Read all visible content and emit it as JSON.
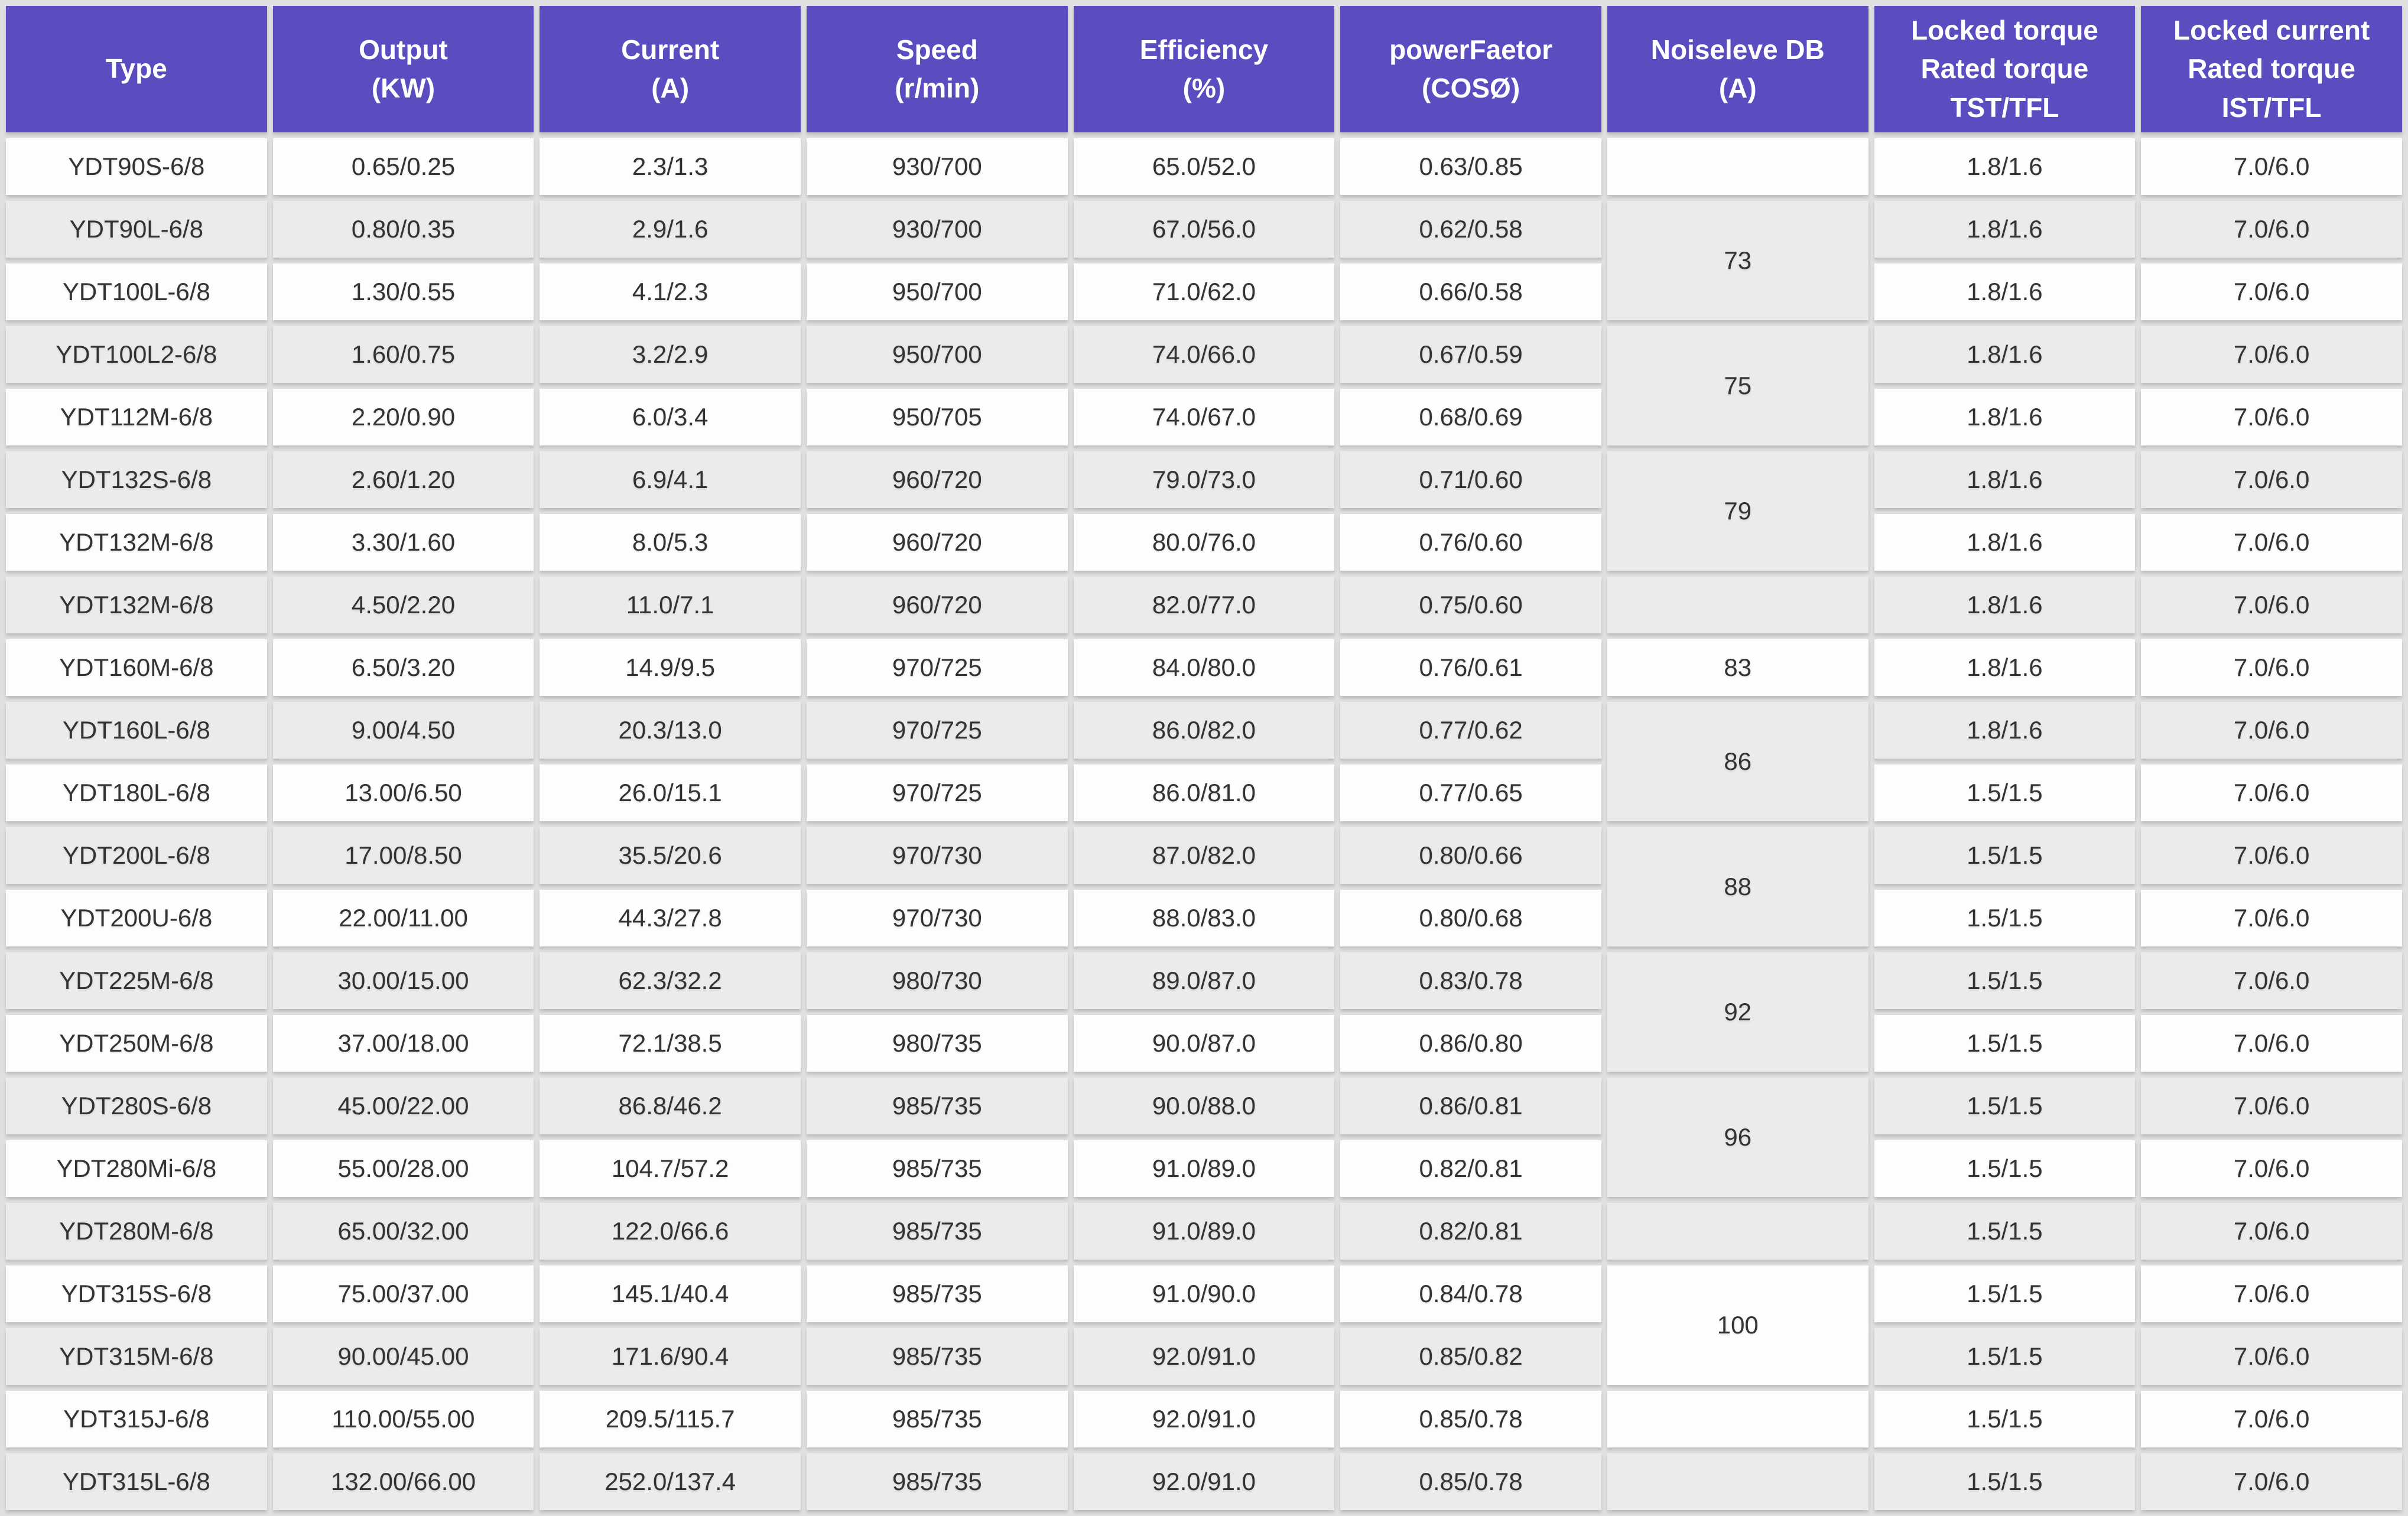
{
  "colors": {
    "header_bg": "#5b4dc0",
    "header_text": "#ffffff",
    "row_white": "#fdfdfd",
    "row_grey": "#ebebeb",
    "gap_grey": "#e0e0e0",
    "cell_text": "#333333"
  },
  "table": {
    "columns": [
      {
        "key": "type",
        "label_lines": [
          "Type"
        ]
      },
      {
        "key": "output",
        "label_lines": [
          "Output",
          "(KW)"
        ]
      },
      {
        "key": "current",
        "label_lines": [
          "Current",
          "(A)"
        ]
      },
      {
        "key": "speed",
        "label_lines": [
          "Speed",
          "(r/min)"
        ]
      },
      {
        "key": "efficiency",
        "label_lines": [
          "Efficiency",
          "(%)"
        ]
      },
      {
        "key": "power_factor",
        "label_lines": [
          "powerFaetor",
          "(COSØ)"
        ]
      },
      {
        "key": "noise",
        "label_lines": [
          "Noiseleve DB",
          "(A)"
        ]
      },
      {
        "key": "locked_torque",
        "label_lines": [
          "Locked torque",
          "Rated torque",
          "TST/TFL"
        ]
      },
      {
        "key": "locked_current",
        "label_lines": [
          "Locked current",
          "Rated torque",
          "IST/TFL"
        ]
      }
    ],
    "rows": [
      {
        "type": "YDT90S-6/8",
        "output": "0.65/0.25",
        "current": "2.3/1.3",
        "speed": "930/700",
        "efficiency": "65.0/52.0",
        "power_factor": "0.63/0.85",
        "noise": {
          "value": "",
          "rowspan": 1
        },
        "locked_torque": "1.8/1.6",
        "locked_current": "7.0/6.0"
      },
      {
        "type": "YDT90L-6/8",
        "output": "0.80/0.35",
        "current": "2.9/1.6",
        "speed": "930/700",
        "efficiency": "67.0/56.0",
        "power_factor": "0.62/0.58",
        "noise": {
          "value": "73",
          "rowspan": 2
        },
        "locked_torque": "1.8/1.6",
        "locked_current": "7.0/6.0"
      },
      {
        "type": "YDT100L-6/8",
        "output": "1.30/0.55",
        "current": "4.1/2.3",
        "speed": "950/700",
        "efficiency": "71.0/62.0",
        "power_factor": "0.66/0.58",
        "noise": null,
        "locked_torque": "1.8/1.6",
        "locked_current": "7.0/6.0"
      },
      {
        "type": "YDT100L2-6/8",
        "output": "1.60/0.75",
        "current": "3.2/2.9",
        "speed": "950/700",
        "efficiency": "74.0/66.0",
        "power_factor": "0.67/0.59",
        "noise": {
          "value": "75",
          "rowspan": 2
        },
        "locked_torque": "1.8/1.6",
        "locked_current": "7.0/6.0"
      },
      {
        "type": "YDT112M-6/8",
        "output": "2.20/0.90",
        "current": "6.0/3.4",
        "speed": "950/705",
        "efficiency": "74.0/67.0",
        "power_factor": "0.68/0.69",
        "noise": null,
        "locked_torque": "1.8/1.6",
        "locked_current": "7.0/6.0"
      },
      {
        "type": "YDT132S-6/8",
        "output": "2.60/1.20",
        "current": "6.9/4.1",
        "speed": "960/720",
        "efficiency": "79.0/73.0",
        "power_factor": "0.71/0.60",
        "noise": {
          "value": "79",
          "rowspan": 2
        },
        "locked_torque": "1.8/1.6",
        "locked_current": "7.0/6.0"
      },
      {
        "type": "YDT132M-6/8",
        "output": "3.30/1.60",
        "current": "8.0/5.3",
        "speed": "960/720",
        "efficiency": "80.0/76.0",
        "power_factor": "0.76/0.60",
        "noise": null,
        "locked_torque": "1.8/1.6",
        "locked_current": "7.0/6.0"
      },
      {
        "type": "YDT132M-6/8",
        "output": "4.50/2.20",
        "current": "11.0/7.1",
        "speed": "960/720",
        "efficiency": "82.0/77.0",
        "power_factor": "0.75/0.60",
        "noise": {
          "value": "",
          "rowspan": 1
        },
        "locked_torque": "1.8/1.6",
        "locked_current": "7.0/6.0"
      },
      {
        "type": "YDT160M-6/8",
        "output": "6.50/3.20",
        "current": "14.9/9.5",
        "speed": "970/725",
        "efficiency": "84.0/80.0",
        "power_factor": "0.76/0.61",
        "noise": {
          "value": "83",
          "rowspan": 1
        },
        "locked_torque": "1.8/1.6",
        "locked_current": "7.0/6.0"
      },
      {
        "type": "YDT160L-6/8",
        "output": "9.00/4.50",
        "current": "20.3/13.0",
        "speed": "970/725",
        "efficiency": "86.0/82.0",
        "power_factor": "0.77/0.62",
        "noise": {
          "value": "86",
          "rowspan": 2
        },
        "locked_torque": "1.8/1.6",
        "locked_current": "7.0/6.0"
      },
      {
        "type": "YDT180L-6/8",
        "output": "13.00/6.50",
        "current": "26.0/15.1",
        "speed": "970/725",
        "efficiency": "86.0/81.0",
        "power_factor": "0.77/0.65",
        "noise": null,
        "locked_torque": "1.5/1.5",
        "locked_current": "7.0/6.0"
      },
      {
        "type": "YDT200L-6/8",
        "output": "17.00/8.50",
        "current": "35.5/20.6",
        "speed": "970/730",
        "efficiency": "87.0/82.0",
        "power_factor": "0.80/0.66",
        "noise": {
          "value": "88",
          "rowspan": 2
        },
        "locked_torque": "1.5/1.5",
        "locked_current": "7.0/6.0"
      },
      {
        "type": "YDT200U-6/8",
        "output": "22.00/11.00",
        "current": "44.3/27.8",
        "speed": "970/730",
        "efficiency": "88.0/83.0",
        "power_factor": "0.80/0.68",
        "noise": null,
        "locked_torque": "1.5/1.5",
        "locked_current": "7.0/6.0"
      },
      {
        "type": "YDT225M-6/8",
        "output": "30.00/15.00",
        "current": "62.3/32.2",
        "speed": "980/730",
        "efficiency": "89.0/87.0",
        "power_factor": "0.83/0.78",
        "noise": {
          "value": "92",
          "rowspan": 2
        },
        "locked_torque": "1.5/1.5",
        "locked_current": "7.0/6.0"
      },
      {
        "type": "YDT250M-6/8",
        "output": "37.00/18.00",
        "current": "72.1/38.5",
        "speed": "980/735",
        "efficiency": "90.0/87.0",
        "power_factor": "0.86/0.80",
        "noise": null,
        "locked_torque": "1.5/1.5",
        "locked_current": "7.0/6.0"
      },
      {
        "type": "YDT280S-6/8",
        "output": "45.00/22.00",
        "current": "86.8/46.2",
        "speed": "985/735",
        "efficiency": "90.0/88.0",
        "power_factor": "0.86/0.81",
        "noise": {
          "value": "96",
          "rowspan": 2
        },
        "locked_torque": "1.5/1.5",
        "locked_current": "7.0/6.0"
      },
      {
        "type": "YDT280Mi-6/8",
        "output": "55.00/28.00",
        "current": "104.7/57.2",
        "speed": "985/735",
        "efficiency": "91.0/89.0",
        "power_factor": "0.82/0.81",
        "noise": null,
        "locked_torque": "1.5/1.5",
        "locked_current": "7.0/6.0"
      },
      {
        "type": "YDT280M-6/8",
        "output": "65.00/32.00",
        "current": "122.0/66.6",
        "speed": "985/735",
        "efficiency": "91.0/89.0",
        "power_factor": "0.82/0.81",
        "noise": {
          "value": "",
          "rowspan": 1
        },
        "locked_torque": "1.5/1.5",
        "locked_current": "7.0/6.0"
      },
      {
        "type": "YDT315S-6/8",
        "output": "75.00/37.00",
        "current": "145.1/40.4",
        "speed": "985/735",
        "efficiency": "91.0/90.0",
        "power_factor": "0.84/0.78",
        "noise": {
          "value": "100",
          "rowspan": 2
        },
        "locked_torque": "1.5/1.5",
        "locked_current": "7.0/6.0"
      },
      {
        "type": "YDT315M-6/8",
        "output": "90.00/45.00",
        "current": "171.6/90.4",
        "speed": "985/735",
        "efficiency": "92.0/91.0",
        "power_factor": "0.85/0.82",
        "noise": null,
        "locked_torque": "1.5/1.5",
        "locked_current": "7.0/6.0"
      },
      {
        "type": "YDT315J-6/8",
        "output": "110.00/55.00",
        "current": "209.5/115.7",
        "speed": "985/735",
        "efficiency": "92.0/91.0",
        "power_factor": "0.85/0.78",
        "noise": {
          "value": "",
          "rowspan": 1
        },
        "locked_torque": "1.5/1.5",
        "locked_current": "7.0/6.0"
      },
      {
        "type": "YDT315L-6/8",
        "output": "132.00/66.00",
        "current": "252.0/137.4",
        "speed": "985/735",
        "efficiency": "92.0/91.0",
        "power_factor": "0.85/0.78",
        "noise": {
          "value": "",
          "rowspan": 1
        },
        "locked_torque": "1.5/1.5",
        "locked_current": "7.0/6.0"
      }
    ]
  }
}
